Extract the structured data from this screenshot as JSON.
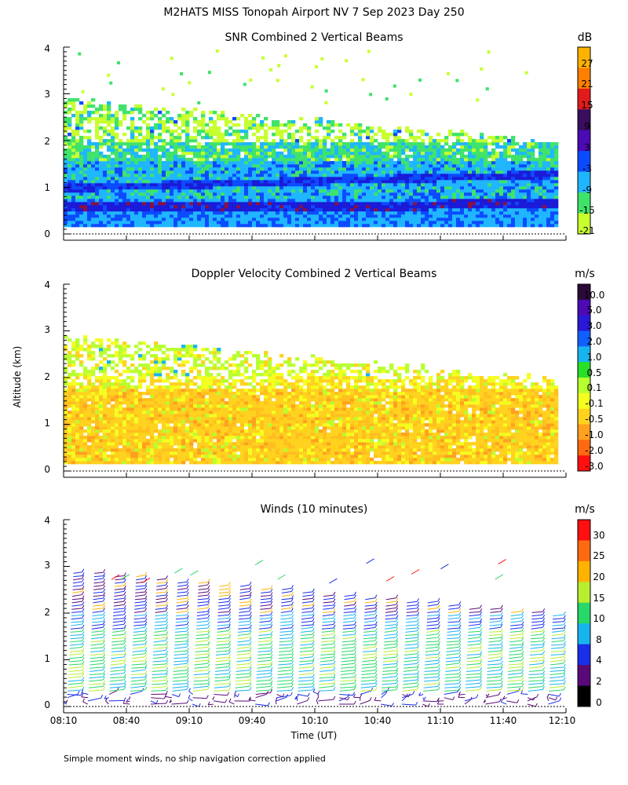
{
  "header": {
    "title": "M2HATS MISS Tonopah Airport NV   7 Sep 2023 Day 250",
    "ylabel": "Altitude (km)",
    "xlabel": "Time (UT)",
    "footnote": "Simple moment winds, no ship navigation correction applied"
  },
  "chart_data": [
    {
      "type": "heatmap",
      "title": "SNR Combined 2 Vertical Beams",
      "unit": "dB",
      "ylim": [
        0,
        4
      ],
      "yticks": [
        "0",
        "1",
        "2",
        "3",
        "4"
      ],
      "colorbar_labels": [
        "-21",
        "-15",
        "-9",
        "-3",
        "3",
        "9",
        "15",
        "21",
        "27"
      ],
      "colorbar_colors": [
        "#c7ff2e",
        "#3fe36a",
        "#1fb6ff",
        "#0b4bff",
        "#4b0ab4",
        "#3a0e5e",
        "#e31a1c",
        "#ff7f00",
        "#ffb300"
      ],
      "layers": [
        {
          "alt_range": [
            0.15,
            0.4
          ],
          "value": -9
        },
        {
          "alt_range": [
            0.4,
            0.7
          ],
          "value": -3
        },
        {
          "alt_range": [
            0.7,
            1.5
          ],
          "value": -9
        },
        {
          "alt_range": [
            1.5,
            1.9
          ],
          "value": -15
        },
        {
          "alt_range": [
            1.9,
            2.8
          ],
          "value": -21
        }
      ]
    },
    {
      "type": "heatmap",
      "title": "Doppler Velocity Combined 2 Vertical Beams",
      "unit": "m/s",
      "ylim": [
        0,
        4
      ],
      "yticks": [
        "0",
        "1",
        "2",
        "3",
        "4"
      ],
      "colorbar_labels": [
        "10.0",
        "5.0",
        "3.0",
        "2.0",
        "1.0",
        "0.5",
        "0.1",
        "-0.1",
        "-0.5",
        "-1.0",
        "-2.0",
        "-3.0"
      ],
      "colorbar_colors": [
        "#2a0a3a",
        "#4b0ab4",
        "#2a18d8",
        "#1060ff",
        "#18b4f0",
        "#28e028",
        "#b8ff30",
        "#f4ff20",
        "#ffd21e",
        "#ffa01e",
        "#ff6a10",
        "#ff1010"
      ],
      "layers": [
        {
          "alt_range": [
            0.15,
            1.7
          ],
          "value": -0.5
        },
        {
          "alt_range": [
            1.7,
            2.8
          ],
          "value": 0.1
        }
      ]
    },
    {
      "type": "wind_barbs",
      "title": "Winds (10 minutes)",
      "unit": "m/s",
      "ylim": [
        0,
        4
      ],
      "yticks": [
        "0",
        "1",
        "2",
        "3",
        "4"
      ],
      "x": [
        "08:10",
        "08:40",
        "09:10",
        "09:40",
        "10:10",
        "10:40",
        "11:10",
        "11:40",
        "12:10"
      ],
      "colorbar_labels": [
        "30",
        "25",
        "20",
        "15",
        "10",
        "8",
        "4",
        "2",
        "0"
      ],
      "colorbar_colors": [
        "#ff1010",
        "#ff6a10",
        "#ffb300",
        "#b8ee30",
        "#28d868",
        "#18b4f0",
        "#1a2ee8",
        "#5a0a78",
        "#000000"
      ]
    }
  ]
}
